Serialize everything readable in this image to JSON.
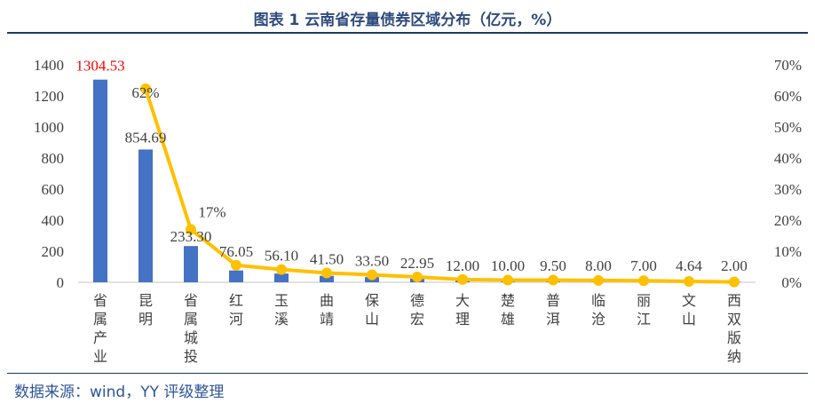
{
  "chart_data": {
    "type": "bar+line",
    "title": "图表 1  云南省存量债券区域分布（亿元，%）",
    "categories": [
      "省属产业",
      "昆明",
      "省属城投",
      "红河",
      "玉溪",
      "曲靖",
      "保山",
      "德宏",
      "大理",
      "楚雄",
      "普洱",
      "临沧",
      "丽江",
      "文山",
      "西双版纳"
    ],
    "series": [
      {
        "type": "bar",
        "axis": "left",
        "color": "#4472c4",
        "values": [
          1304.53,
          854.69,
          233.3,
          76.05,
          56.1,
          41.5,
          33.5,
          22.95,
          12.0,
          10.0,
          9.5,
          8.0,
          7.0,
          4.64,
          2.0
        ],
        "labels": [
          "1304.53",
          "854.69",
          "233.30",
          "76.05",
          "56.10",
          "41.50",
          "33.50",
          "22.95",
          "12.00",
          "10.00",
          "9.50",
          "8.00",
          "7.00",
          "4.64",
          "2.00"
        ]
      },
      {
        "type": "line",
        "axis": "right",
        "color": "#ffc000",
        "values": [
          null,
          62.3,
          17.0,
          5.5,
          4.1,
          3.0,
          2.4,
          1.7,
          0.9,
          0.7,
          0.7,
          0.6,
          0.5,
          0.3,
          0.1
        ],
        "labels": {
          "1": "62%",
          "2": "17%"
        }
      }
    ],
    "highlight_label_color": "#ff0000",
    "ylim_left": [
      0,
      1400
    ],
    "yticks_left": [
      "0",
      "200",
      "400",
      "600",
      "800",
      "1000",
      "1200",
      "1400"
    ],
    "ylim_right": [
      0,
      70
    ],
    "yticks_right": [
      "0%",
      "10%",
      "20%",
      "30%",
      "40%",
      "50%",
      "60%",
      "70%"
    ],
    "grid": false
  },
  "source": "数据来源：wind，YY 评级整理"
}
